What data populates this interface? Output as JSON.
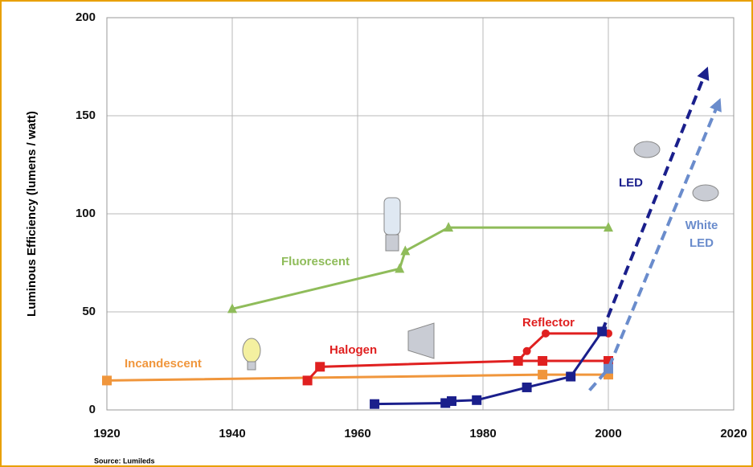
{
  "chart_data": {
    "type": "line",
    "y_label": "Luminous Efficiency (lumens / watt)",
    "source": "Source:  Lumileds",
    "xlim": [
      1920,
      2020
    ],
    "xticks": [
      1920,
      1940,
      1960,
      1980,
      2000,
      2020
    ],
    "ylim": [
      0,
      200
    ],
    "yticks": [
      0,
      50,
      100,
      150,
      200
    ],
    "grid": true,
    "series": [
      {
        "name": "Incandescent",
        "color": "#f0963c",
        "marker": "square",
        "x": [
          1920,
          1989.5,
          2000
        ],
        "values": [
          15,
          18,
          18
        ]
      },
      {
        "name": "Halogen",
        "color": "#e02020",
        "marker": "square",
        "x": [
          1952,
          1954,
          1985.6,
          1989.5,
          2000
        ],
        "values": [
          15,
          22,
          25,
          25,
          25
        ]
      },
      {
        "name": "Reflector",
        "color": "#e02020",
        "marker": "circle",
        "x": [
          1985.6,
          1987,
          1990,
          2000
        ],
        "values": [
          25,
          30,
          39,
          39
        ]
      },
      {
        "name": "Fluorescent",
        "color": "#8fbc5a",
        "marker": "triangle",
        "x": [
          1940,
          1966.7,
          1967.6,
          1974.5,
          2000
        ],
        "values": [
          51.5,
          72,
          81,
          93,
          93
        ]
      },
      {
        "name": "LED",
        "color": "#1a1f8c",
        "marker": "square",
        "x": [
          1962.7,
          1974,
          1975,
          1979,
          1987,
          1994,
          1999
        ],
        "values": [
          3,
          3.5,
          4.5,
          5,
          11.5,
          17,
          40
        ],
        "projection": {
          "x": [
            1999,
            2015.5
          ],
          "values": [
            40,
            172
          ]
        }
      },
      {
        "name": "White LED",
        "color": "#6a8ccc",
        "marker": "square",
        "style": "dashed",
        "x": [
          1997,
          2000,
          2017.5
        ],
        "values": [
          10,
          21,
          156
        ]
      }
    ]
  }
}
